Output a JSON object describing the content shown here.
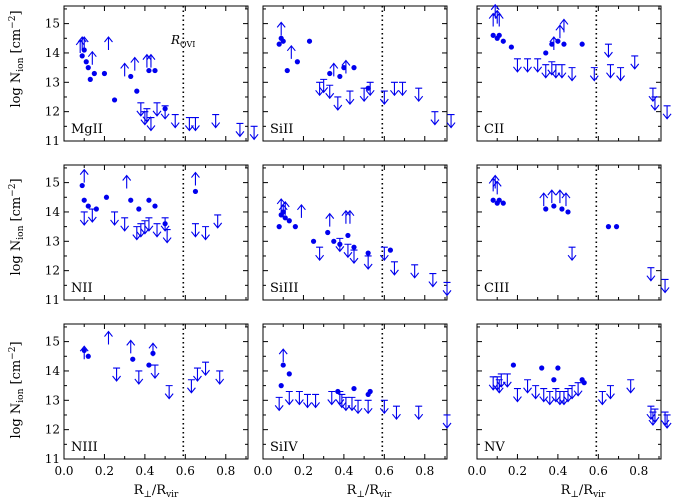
{
  "figure": {
    "ylabel_main": "log N",
    "ylabel_sub": "ion",
    "ylabel_units": "[cm",
    "ylabel_exp": "−2",
    "ylabel_close": "]",
    "xlabel_main": "R",
    "xlabel_perp": "⊥",
    "xlabel_slash": "/R",
    "xlabel_sub": "vir",
    "rovi_main": "R",
    "rovi_sub": "OVI"
  },
  "colors": {
    "points": "#0000ee",
    "frame": "#000000",
    "vline": "#000000"
  },
  "chart_data": [
    {
      "type": "scatter",
      "ion": "MgII",
      "title": "MgII",
      "xlim": [
        0,
        1.0
      ],
      "ylim": [
        11,
        15.6
      ],
      "xticks": [],
      "xtick_labels": [],
      "yticks": [
        11,
        12,
        13,
        14,
        15
      ],
      "ytick_labels": [
        "11",
        "12",
        "13",
        "14",
        "15"
      ],
      "vline": 0.59,
      "vline_label": true,
      "detections": [
        [
          0.09,
          13.9
        ],
        [
          0.1,
          14.1
        ],
        [
          0.11,
          13.7
        ],
        [
          0.12,
          13.5
        ],
        [
          0.13,
          13.1
        ],
        [
          0.15,
          13.3
        ],
        [
          0.2,
          13.3
        ],
        [
          0.25,
          12.4
        ],
        [
          0.33,
          13.2
        ],
        [
          0.36,
          12.7
        ],
        [
          0.42,
          13.4
        ],
        [
          0.45,
          13.4
        ],
        [
          0.5,
          12.1
        ]
      ],
      "lower_limits": [
        [
          0.08,
          14.0
        ],
        [
          0.09,
          14.1
        ],
        [
          0.1,
          14.1
        ],
        [
          0.14,
          13.6
        ],
        [
          0.22,
          14.1
        ],
        [
          0.3,
          13.2
        ],
        [
          0.35,
          13.4
        ],
        [
          0.41,
          13.5
        ],
        [
          0.43,
          13.5
        ]
      ],
      "upper_limits": [
        [
          0.38,
          12.3
        ],
        [
          0.4,
          12.0
        ],
        [
          0.41,
          12.1
        ],
        [
          0.43,
          11.8
        ],
        [
          0.46,
          12.3
        ],
        [
          0.5,
          12.2
        ],
        [
          0.55,
          11.9
        ],
        [
          0.62,
          11.8
        ],
        [
          0.65,
          11.8
        ],
        [
          0.75,
          11.9
        ],
        [
          0.87,
          11.6
        ],
        [
          0.94,
          11.5
        ]
      ]
    },
    {
      "type": "scatter",
      "ion": "SiII",
      "title": "SiII",
      "xlim": [
        0,
        1.0
      ],
      "ylim": [
        11,
        15.6
      ],
      "xticks": [],
      "xtick_labels": [],
      "yticks": [
        11,
        12,
        13,
        14,
        15
      ],
      "ytick_labels": [],
      "vline": 0.59,
      "vline_label": false,
      "detections": [
        [
          0.08,
          14.3
        ],
        [
          0.09,
          14.5
        ],
        [
          0.1,
          14.4
        ],
        [
          0.12,
          13.4
        ],
        [
          0.17,
          13.7
        ],
        [
          0.23,
          14.4
        ],
        [
          0.33,
          13.3
        ],
        [
          0.38,
          13.2
        ],
        [
          0.4,
          13.5
        ],
        [
          0.45,
          13.5
        ],
        [
          0.52,
          12.8
        ]
      ],
      "lower_limits": [
        [
          0.09,
          14.6
        ],
        [
          0.14,
          13.8
        ],
        [
          0.35,
          13.2
        ],
        [
          0.41,
          13.3
        ]
      ],
      "upper_limits": [
        [
          0.28,
          13.0
        ],
        [
          0.3,
          13.1
        ],
        [
          0.33,
          12.9
        ],
        [
          0.37,
          12.5
        ],
        [
          0.43,
          12.7
        ],
        [
          0.5,
          12.8
        ],
        [
          0.53,
          13.0
        ],
        [
          0.6,
          12.7
        ],
        [
          0.65,
          13.0
        ],
        [
          0.69,
          13.0
        ],
        [
          0.77,
          12.8
        ],
        [
          0.85,
          12.0
        ],
        [
          0.93,
          11.9
        ]
      ]
    },
    {
      "type": "scatter",
      "ion": "CII",
      "title": "CII",
      "xlim": [
        0,
        1.0
      ],
      "ylim": [
        11,
        15.6
      ],
      "xticks": [],
      "xtick_labels": [],
      "yticks": [
        11,
        12,
        13,
        14,
        15
      ],
      "ytick_labels": [],
      "vline": 0.59,
      "vline_label": false,
      "detections": [
        [
          0.08,
          14.6
        ],
        [
          0.1,
          14.5
        ],
        [
          0.11,
          14.6
        ],
        [
          0.13,
          14.4
        ],
        [
          0.17,
          14.2
        ],
        [
          0.34,
          14.0
        ],
        [
          0.37,
          14.3
        ],
        [
          0.4,
          14.4
        ],
        [
          0.43,
          14.3
        ],
        [
          0.52,
          14.3
        ]
      ],
      "lower_limits": [
        [
          0.08,
          14.9
        ],
        [
          0.09,
          15.2
        ],
        [
          0.1,
          15.0
        ],
        [
          0.11,
          14.9
        ],
        [
          0.38,
          14.1
        ],
        [
          0.41,
          14.5
        ],
        [
          0.43,
          14.7
        ]
      ],
      "upper_limits": [
        [
          0.2,
          13.8
        ],
        [
          0.25,
          13.8
        ],
        [
          0.3,
          13.8
        ],
        [
          0.34,
          13.6
        ],
        [
          0.37,
          13.7
        ],
        [
          0.39,
          13.6
        ],
        [
          0.42,
          13.6
        ],
        [
          0.47,
          13.5
        ],
        [
          0.58,
          13.5
        ],
        [
          0.65,
          14.3
        ],
        [
          0.66,
          13.6
        ],
        [
          0.71,
          13.5
        ],
        [
          0.78,
          13.9
        ],
        [
          0.87,
          12.8
        ],
        [
          0.88,
          12.5
        ],
        [
          0.94,
          12.2
        ]
      ]
    },
    {
      "type": "scatter",
      "ion": "NII",
      "title": "NII",
      "xlim": [
        0,
        1.0
      ],
      "ylim": [
        11,
        15.6
      ],
      "xticks": [],
      "xtick_labels": [],
      "yticks": [
        11,
        12,
        13,
        14,
        15
      ],
      "ytick_labels": [
        "11",
        "12",
        "13",
        "14",
        "15"
      ],
      "vline": 0.59,
      "vline_label": false,
      "detections": [
        [
          0.09,
          14.9
        ],
        [
          0.1,
          14.4
        ],
        [
          0.12,
          14.2
        ],
        [
          0.16,
          14.1
        ],
        [
          0.21,
          14.5
        ],
        [
          0.33,
          14.4
        ],
        [
          0.37,
          14.1
        ],
        [
          0.42,
          14.4
        ],
        [
          0.45,
          14.2
        ],
        [
          0.5,
          13.6
        ],
        [
          0.65,
          14.7
        ]
      ],
      "lower_limits": [
        [
          0.1,
          15.0
        ],
        [
          0.31,
          14.8
        ],
        [
          0.65,
          14.9
        ]
      ],
      "upper_limits": [
        [
          0.1,
          14.0
        ],
        [
          0.14,
          14.1
        ],
        [
          0.25,
          14.0
        ],
        [
          0.3,
          13.8
        ],
        [
          0.36,
          13.5
        ],
        [
          0.38,
          13.6
        ],
        [
          0.4,
          13.7
        ],
        [
          0.42,
          13.8
        ],
        [
          0.46,
          13.6
        ],
        [
          0.5,
          13.8
        ],
        [
          0.51,
          13.4
        ],
        [
          0.65,
          13.6
        ],
        [
          0.7,
          13.5
        ],
        [
          0.76,
          13.9
        ]
      ]
    },
    {
      "type": "scatter",
      "ion": "SiIII",
      "title": "SiIII",
      "xlim": [
        0,
        1.0
      ],
      "ylim": [
        11,
        15.6
      ],
      "xticks": [],
      "xtick_labels": [],
      "yticks": [
        11,
        12,
        13,
        14,
        15
      ],
      "ytick_labels": [],
      "vline": 0.59,
      "vline_label": false,
      "detections": [
        [
          0.08,
          13.5
        ],
        [
          0.09,
          13.9
        ],
        [
          0.1,
          14.0
        ],
        [
          0.11,
          13.8
        ],
        [
          0.13,
          13.7
        ],
        [
          0.16,
          13.5
        ],
        [
          0.25,
          13.0
        ],
        [
          0.32,
          13.3
        ],
        [
          0.35,
          13.0
        ],
        [
          0.38,
          12.9
        ],
        [
          0.42,
          13.2
        ],
        [
          0.45,
          12.8
        ],
        [
          0.52,
          12.6
        ],
        [
          0.63,
          12.7
        ]
      ],
      "lower_limits": [
        [
          0.09,
          14.0
        ],
        [
          0.1,
          13.8
        ],
        [
          0.11,
          13.9
        ],
        [
          0.19,
          13.8
        ],
        [
          0.33,
          13.5
        ],
        [
          0.41,
          13.6
        ],
        [
          0.43,
          13.6
        ]
      ],
      "upper_limits": [
        [
          0.28,
          12.8
        ],
        [
          0.38,
          13.1
        ],
        [
          0.42,
          12.9
        ],
        [
          0.45,
          12.7
        ],
        [
          0.52,
          12.5
        ],
        [
          0.6,
          12.8
        ],
        [
          0.65,
          12.3
        ],
        [
          0.75,
          12.2
        ],
        [
          0.84,
          11.9
        ],
        [
          0.91,
          11.6
        ]
      ]
    },
    {
      "type": "scatter",
      "ion": "CIII",
      "title": "CIII",
      "xlim": [
        0,
        1.0
      ],
      "ylim": [
        11,
        15.6
      ],
      "xticks": [],
      "xtick_labels": [],
      "yticks": [
        11,
        12,
        13,
        14,
        15
      ],
      "ytick_labels": [],
      "vline": 0.59,
      "vline_label": false,
      "detections": [
        [
          0.08,
          14.4
        ],
        [
          0.1,
          14.3
        ],
        [
          0.11,
          14.4
        ],
        [
          0.13,
          14.3
        ],
        [
          0.34,
          14.1
        ],
        [
          0.38,
          14.2
        ],
        [
          0.42,
          14.1
        ],
        [
          0.45,
          14.0
        ],
        [
          0.65,
          13.5
        ],
        [
          0.69,
          13.5
        ]
      ],
      "lower_limits": [
        [
          0.08,
          14.7
        ],
        [
          0.09,
          14.8
        ],
        [
          0.1,
          14.6
        ],
        [
          0.33,
          14.2
        ],
        [
          0.37,
          14.3
        ],
        [
          0.41,
          14.3
        ],
        [
          0.44,
          14.2
        ]
      ],
      "upper_limits": [
        [
          0.47,
          12.8
        ],
        [
          0.86,
          12.1
        ],
        [
          0.93,
          11.7
        ]
      ]
    },
    {
      "type": "scatter",
      "ion": "NIII",
      "title": "NIII",
      "xlim": [
        0,
        1.0
      ],
      "ylim": [
        11,
        15.6
      ],
      "xticks": [
        0,
        0.2,
        0.4,
        0.6,
        0.8
      ],
      "xtick_labels": [
        "0.0",
        "0.2",
        "0.4",
        "0.6",
        "0.8"
      ],
      "yticks": [
        11,
        12,
        13,
        14,
        15
      ],
      "ytick_labels": [
        "11",
        "12",
        "13",
        "14",
        "15"
      ],
      "vline": 0.59,
      "vline_label": false,
      "detections": [
        [
          0.1,
          14.7
        ],
        [
          0.12,
          14.5
        ],
        [
          0.34,
          14.4
        ],
        [
          0.42,
          14.2
        ],
        [
          0.44,
          14.6
        ]
      ],
      "lower_limits": [
        [
          0.1,
          14.4
        ],
        [
          0.22,
          14.9
        ],
        [
          0.33,
          14.6
        ],
        [
          0.44,
          14.5
        ]
      ],
      "upper_limits": [
        [
          0.26,
          14.1
        ],
        [
          0.37,
          14.0
        ],
        [
          0.45,
          14.2
        ],
        [
          0.52,
          13.5
        ],
        [
          0.63,
          13.7
        ],
        [
          0.66,
          14.1
        ],
        [
          0.7,
          14.3
        ],
        [
          0.77,
          14.0
        ]
      ]
    },
    {
      "type": "scatter",
      "ion": "SiIV",
      "title": "SiIV",
      "xlim": [
        0,
        1.0
      ],
      "ylim": [
        11,
        15.6
      ],
      "xticks": [
        0,
        0.2,
        0.4,
        0.6,
        0.8
      ],
      "xtick_labels": [
        "0.0",
        "0.2",
        "0.4",
        "0.6",
        "0.8"
      ],
      "yticks": [
        11,
        12,
        13,
        14,
        15
      ],
      "ytick_labels": [],
      "vline": 0.59,
      "vline_label": false,
      "detections": [
        [
          0.09,
          13.5
        ],
        [
          0.1,
          14.2
        ],
        [
          0.13,
          13.9
        ],
        [
          0.37,
          13.3
        ],
        [
          0.45,
          13.4
        ],
        [
          0.52,
          13.2
        ],
        [
          0.53,
          13.3
        ]
      ],
      "lower_limits": [
        [
          0.1,
          14.3
        ]
      ],
      "upper_limits": [
        [
          0.08,
          13.1
        ],
        [
          0.13,
          13.3
        ],
        [
          0.18,
          13.3
        ],
        [
          0.22,
          13.2
        ],
        [
          0.26,
          13.2
        ],
        [
          0.34,
          13.3
        ],
        [
          0.38,
          13.3
        ],
        [
          0.39,
          13.2
        ],
        [
          0.41,
          13.1
        ],
        [
          0.44,
          13.1
        ],
        [
          0.47,
          13.0
        ],
        [
          0.52,
          13.0
        ],
        [
          0.6,
          13.0
        ],
        [
          0.66,
          12.8
        ],
        [
          0.77,
          12.8
        ],
        [
          0.91,
          12.5
        ]
      ]
    },
    {
      "type": "scatter",
      "ion": "NV",
      "title": "NV",
      "xlim": [
        0,
        1.0
      ],
      "ylim": [
        11,
        15.6
      ],
      "xticks": [
        0,
        0.2,
        0.4,
        0.6,
        0.8
      ],
      "xtick_labels": [
        "0.0",
        "0.2",
        "0.4",
        "0.6",
        "0.8"
      ],
      "yticks": [
        11,
        12,
        13,
        14,
        15
      ],
      "ytick_labels": [],
      "vline": 0.59,
      "vline_label": false,
      "detections": [
        [
          0.18,
          14.2
        ],
        [
          0.32,
          14.1
        ],
        [
          0.38,
          13.7
        ],
        [
          0.4,
          14.1
        ],
        [
          0.52,
          13.7
        ],
        [
          0.53,
          13.6
        ]
      ],
      "lower_limits": [],
      "upper_limits": [
        [
          0.08,
          13.8
        ],
        [
          0.1,
          13.8
        ],
        [
          0.11,
          13.7
        ],
        [
          0.12,
          13.9
        ],
        [
          0.15,
          13.9
        ],
        [
          0.2,
          13.4
        ],
        [
          0.25,
          13.7
        ],
        [
          0.29,
          13.5
        ],
        [
          0.33,
          13.4
        ],
        [
          0.36,
          13.3
        ],
        [
          0.39,
          13.4
        ],
        [
          0.41,
          13.3
        ],
        [
          0.43,
          13.3
        ],
        [
          0.45,
          13.4
        ],
        [
          0.47,
          13.5
        ],
        [
          0.5,
          13.6
        ],
        [
          0.62,
          13.3
        ],
        [
          0.66,
          13.5
        ],
        [
          0.76,
          13.7
        ],
        [
          0.86,
          12.8
        ],
        [
          0.87,
          12.6
        ],
        [
          0.88,
          12.7
        ],
        [
          0.93,
          12.6
        ],
        [
          0.94,
          12.5
        ]
      ]
    }
  ]
}
